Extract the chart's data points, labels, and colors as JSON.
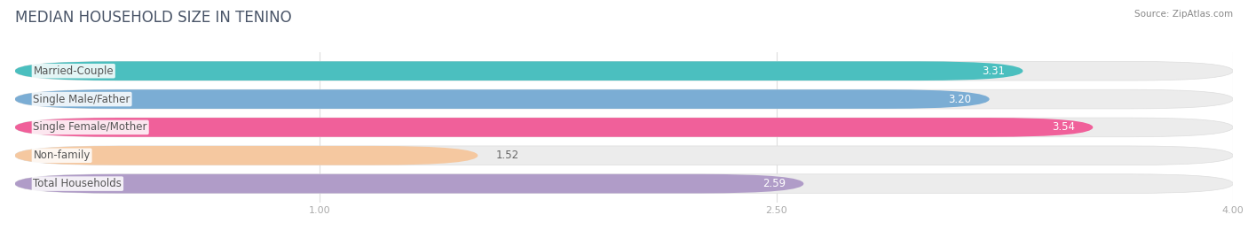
{
  "title": "MEDIAN HOUSEHOLD SIZE IN TENINO",
  "source": "Source: ZipAtlas.com",
  "categories": [
    "Married-Couple",
    "Single Male/Father",
    "Single Female/Mother",
    "Non-family",
    "Total Households"
  ],
  "values": [
    3.31,
    3.2,
    3.54,
    1.52,
    2.59
  ],
  "bar_colors": [
    "#4bbfbf",
    "#7badd4",
    "#f0609a",
    "#f5c8a0",
    "#b09cc8"
  ],
  "background_color": "#ffffff",
  "bar_bg_color": "#ececec",
  "xlim_data": [
    0,
    4.0
  ],
  "xmin": 0,
  "xmax": 4.0,
  "xticks": [
    1.0,
    2.5,
    4.0
  ],
  "title_fontsize": 12,
  "label_fontsize": 8.5,
  "value_fontsize": 8.5,
  "title_color": "#4a5568",
  "source_color": "#888888",
  "tick_color": "#aaaaaa",
  "grid_color": "#dddddd",
  "label_dark_color": "#555555",
  "value_inside_color": "#ffffff",
  "value_outside_color": "#666666"
}
